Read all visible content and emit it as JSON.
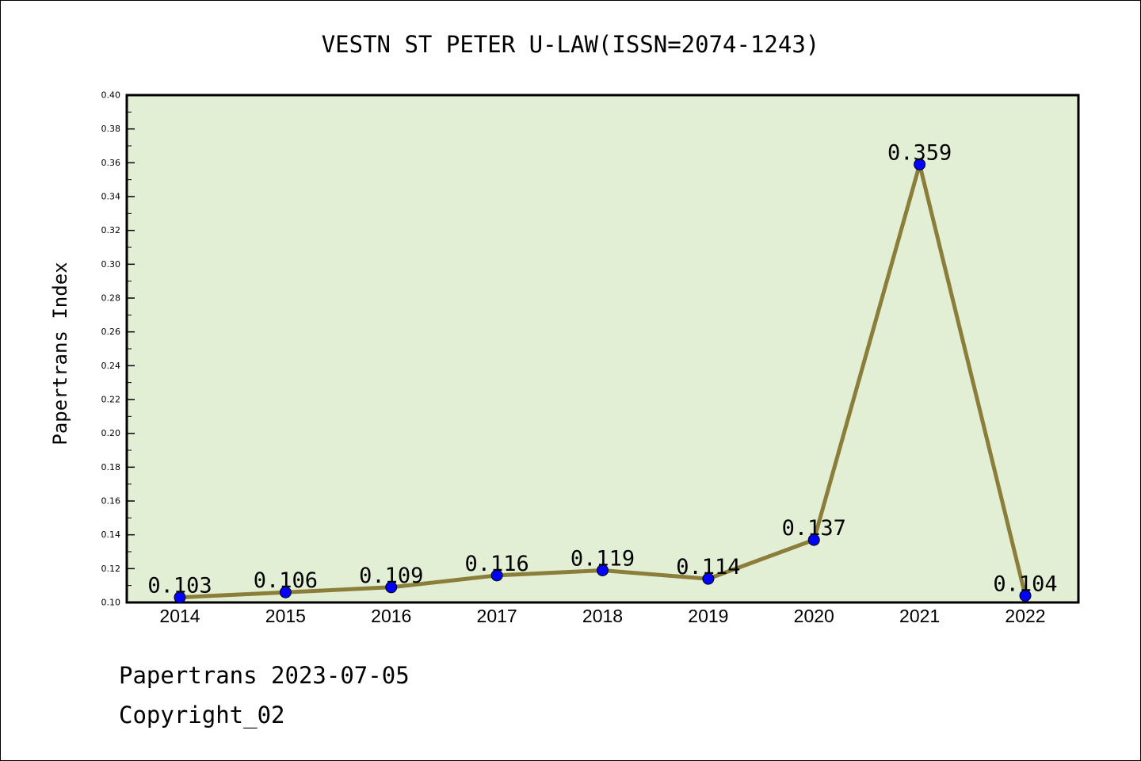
{
  "chart_data": {
    "type": "line",
    "title": "VESTN ST PETER U-LAW(ISSN=2074-1243)",
    "xlabel": "",
    "ylabel": "Papertrans Index",
    "categories": [
      "2014",
      "2015",
      "2016",
      "2017",
      "2018",
      "2019",
      "2020",
      "2021",
      "2022"
    ],
    "series": [
      {
        "name": "Papertrans Index",
        "values": [
          0.103,
          0.106,
          0.109,
          0.116,
          0.119,
          0.114,
          0.137,
          0.359,
          0.104
        ],
        "labels": [
          "0.103",
          "0.106",
          "0.109",
          "0.116",
          "0.119",
          "0.114",
          "0.137",
          "0.359",
          "0.104"
        ]
      }
    ],
    "ylim": [
      0.1,
      0.4
    ],
    "yticks": [
      "0.10",
      "0.12",
      "0.14",
      "0.16",
      "0.18",
      "0.20",
      "0.22",
      "0.24",
      "0.26",
      "0.28",
      "0.30",
      "0.32",
      "0.34",
      "0.36",
      "0.38",
      "0.40"
    ],
    "grid": false,
    "colors": {
      "plot_background": "#e2efd4",
      "line": "#8b7d3a",
      "marker": "#0000ff",
      "axis": "#000000"
    }
  },
  "footer": {
    "date_line": "Papertrans 2023-07-05",
    "copyright": "Copyright_02"
  }
}
